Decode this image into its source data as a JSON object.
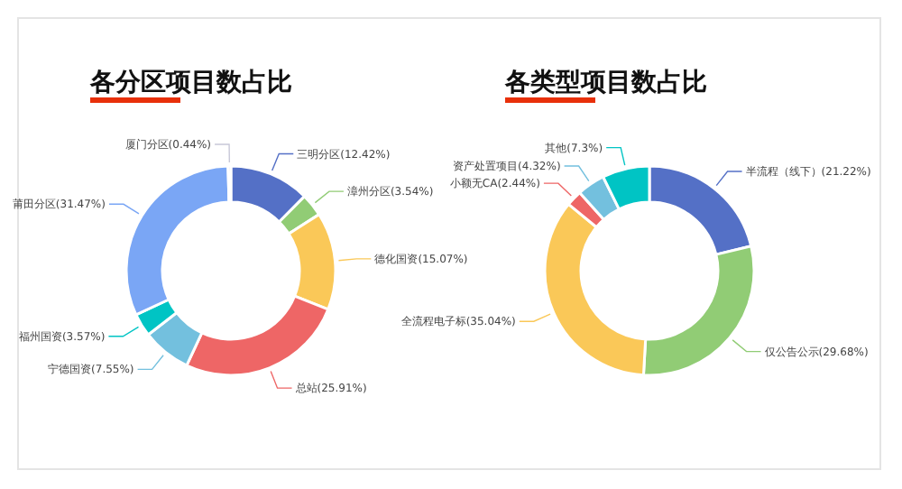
{
  "chart_data": [
    {
      "type": "donut",
      "title": "各分区项目数占比",
      "categories": [
        "三明分区(12.42%)",
        "漳州分区(3.54%)",
        "德化国资(15.07%)",
        "总站(25.91%)",
        "宁德国资(7.55%)",
        "福州国资(3.57%)",
        "莆田分区(31.47%)",
        "厦门分区(0.44%)"
      ],
      "values": [
        12.42,
        3.54,
        15.07,
        25.91,
        7.55,
        3.57,
        31.47,
        0.44
      ],
      "colors": [
        "#5470c6",
        "#91cc75",
        "#fac858",
        "#ee6666",
        "#73c0de",
        "#00c4c4",
        "#7aa6f5",
        "#c8c8d8"
      ]
    },
    {
      "type": "donut",
      "title": "各类型项目数占比",
      "categories": [
        "半流程（线下）(21.22%)",
        "仅公告公示(29.68%)",
        "全流程电子标(35.04%)",
        "小额无CA(2.44%)",
        "资产处置项目(4.32%)",
        "其他(7.3%)"
      ],
      "values": [
        21.22,
        29.68,
        35.04,
        2.44,
        4.32,
        7.3
      ],
      "colors": [
        "#5470c6",
        "#91cc75",
        "#fac858",
        "#ee6666",
        "#73c0de",
        "#00c4c4"
      ]
    }
  ]
}
